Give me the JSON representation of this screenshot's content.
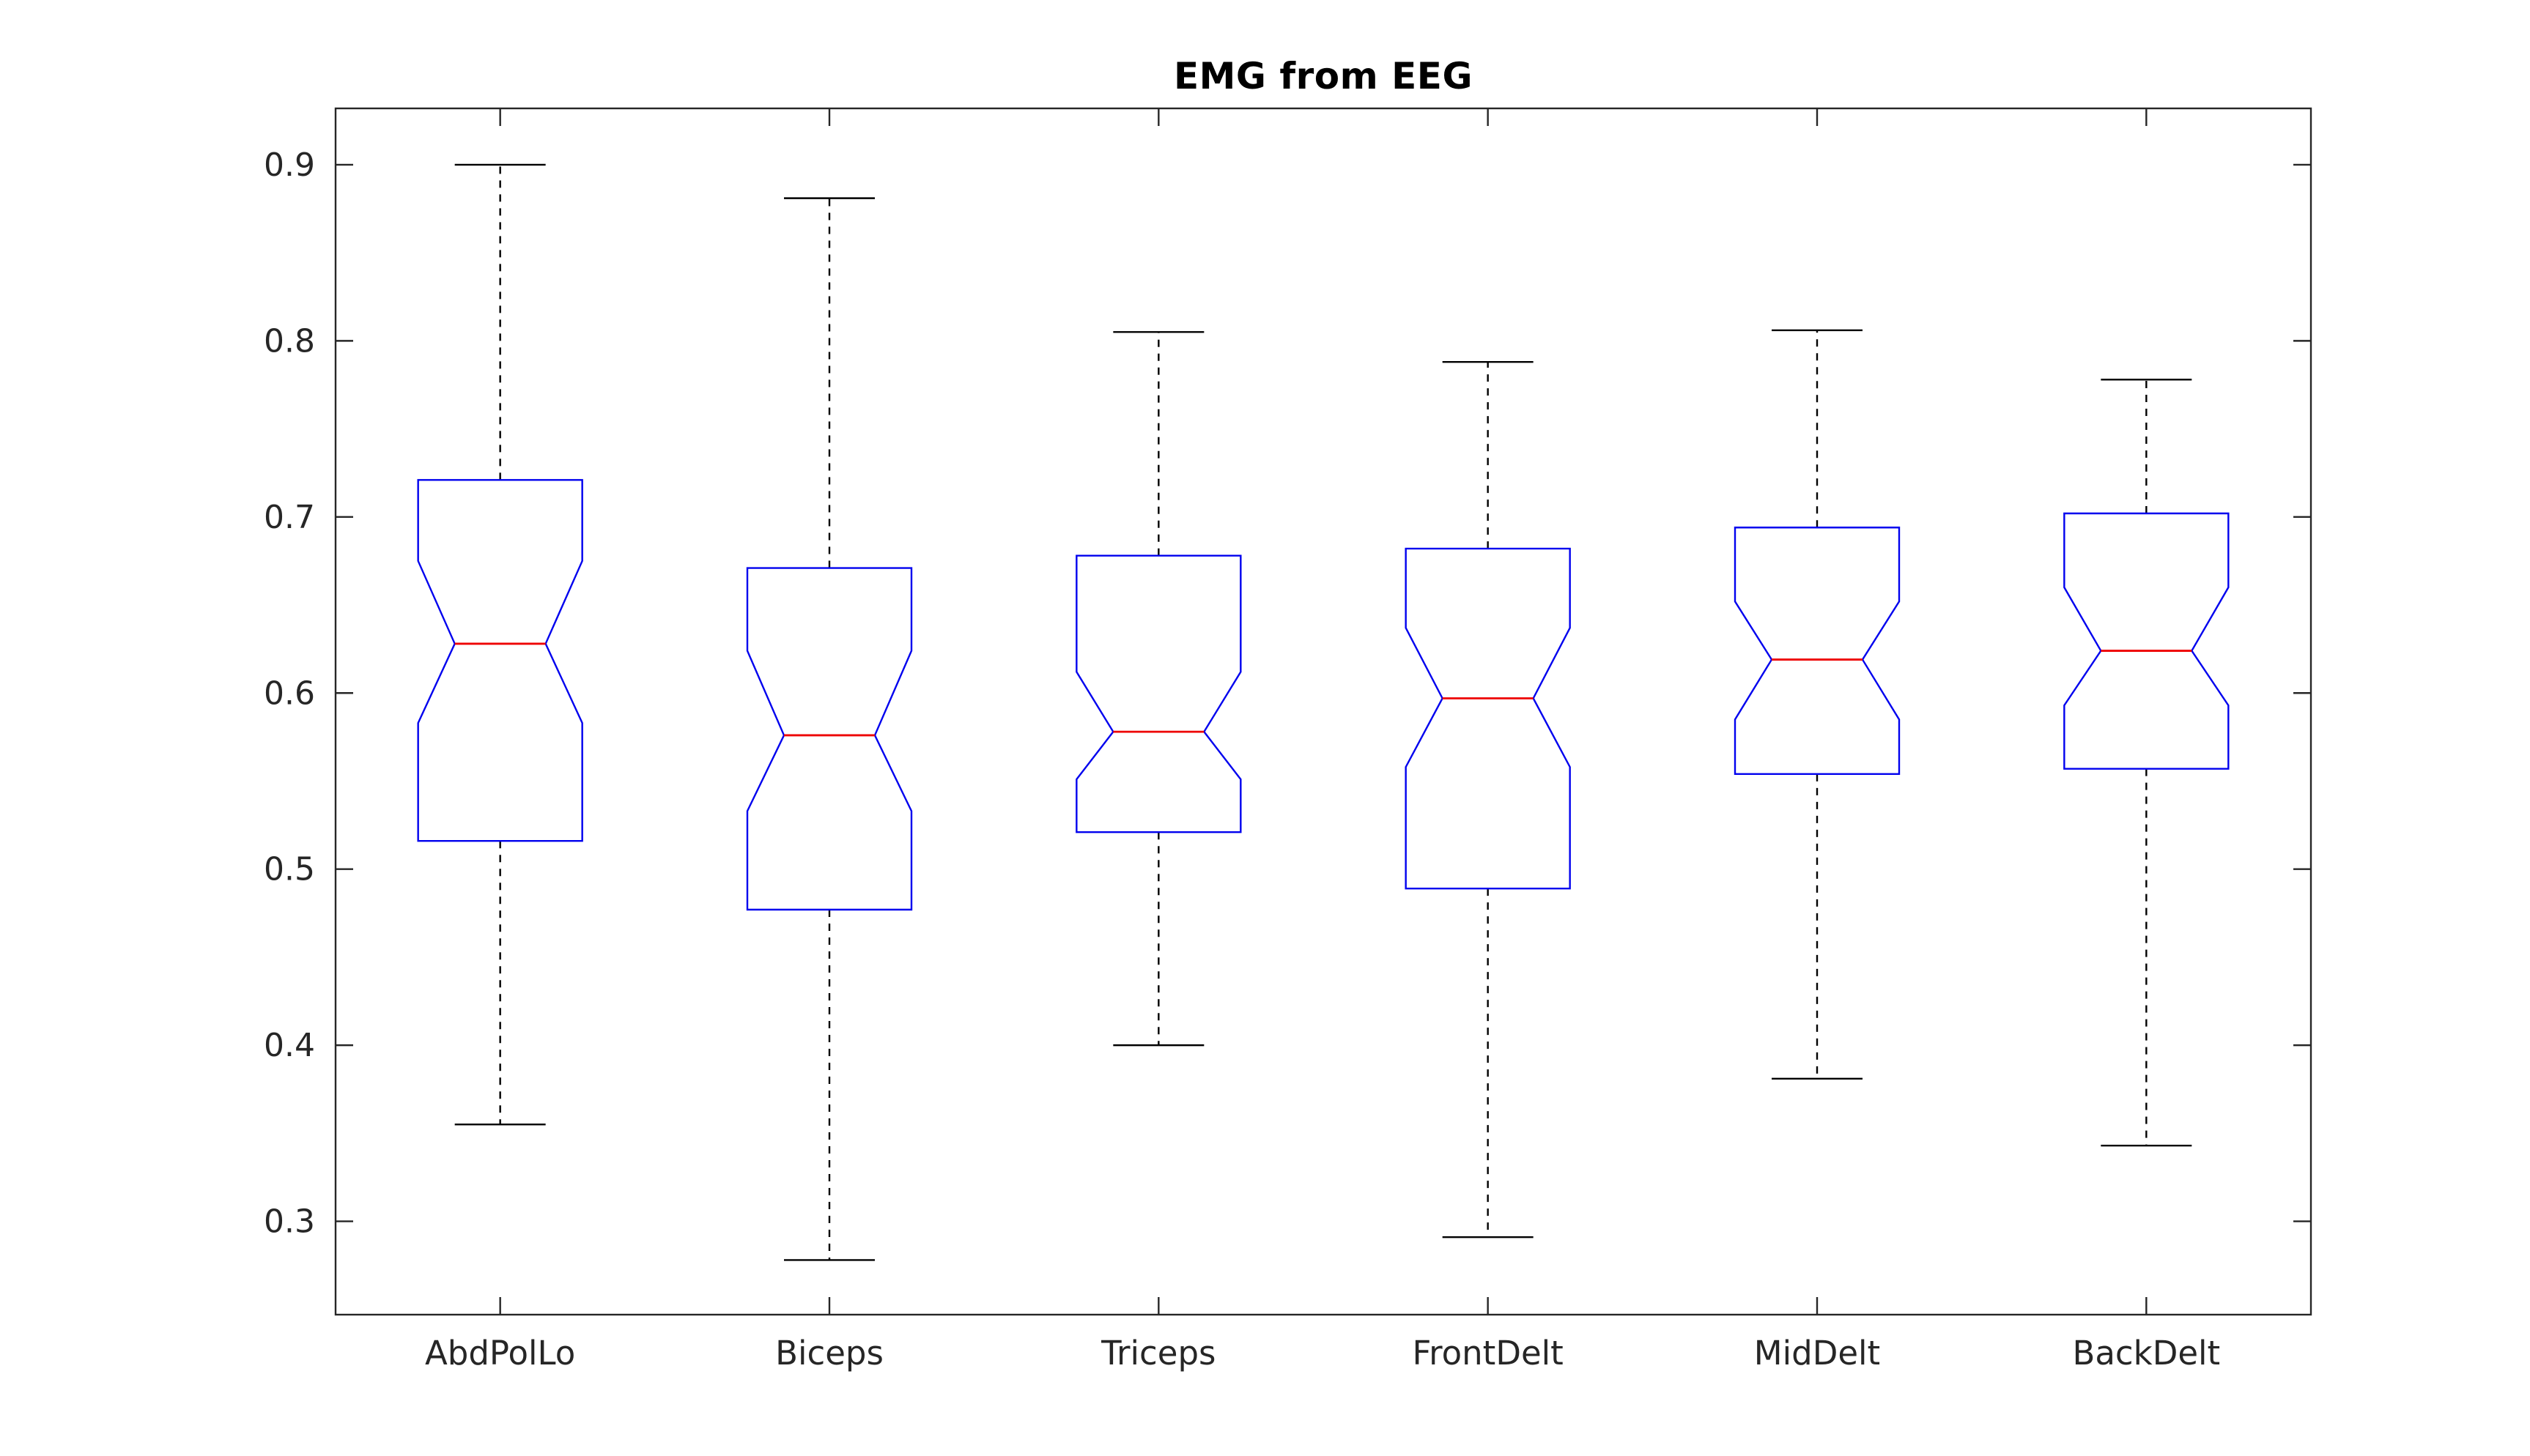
{
  "chart_data": {
    "type": "boxplot",
    "title": "EMG from EEG",
    "xlabel": "",
    "ylabel": "",
    "categories": [
      "AbdPolLo",
      "Biceps",
      "Triceps",
      "FrontDelt",
      "MidDelt",
      "BackDelt"
    ],
    "ylim": [
      0.247,
      0.932
    ],
    "yticks": [
      0.3,
      0.4,
      0.5,
      0.6,
      0.7,
      0.8,
      0.9
    ],
    "ytick_labels": [
      "0.3",
      "0.4",
      "0.5",
      "0.6",
      "0.7",
      "0.8",
      "0.9"
    ],
    "grid": false,
    "legend": null,
    "notched": true,
    "colors": {
      "box": "#0000ee",
      "median": "#ee0000",
      "whisker": "#000000",
      "cap": "#000000",
      "axis": "#262626",
      "tick_label": "#262626",
      "title": "#000000",
      "background": "#ffffff"
    },
    "boxes": [
      {
        "label": "AbdPolLo",
        "whisker_low": 0.355,
        "q1": 0.516,
        "median": 0.628,
        "q3": 0.721,
        "whisker_high": 0.9,
        "notch_low": 0.583,
        "notch_high": 0.675
      },
      {
        "label": "Biceps",
        "whisker_low": 0.278,
        "q1": 0.477,
        "median": 0.576,
        "q3": 0.671,
        "whisker_high": 0.881,
        "notch_low": 0.533,
        "notch_high": 0.624
      },
      {
        "label": "Triceps",
        "whisker_low": 0.4,
        "q1": 0.521,
        "median": 0.578,
        "q3": 0.678,
        "whisker_high": 0.805,
        "notch_low": 0.551,
        "notch_high": 0.612
      },
      {
        "label": "FrontDelt",
        "whisker_low": 0.291,
        "q1": 0.489,
        "median": 0.597,
        "q3": 0.682,
        "whisker_high": 0.788,
        "notch_low": 0.558,
        "notch_high": 0.637
      },
      {
        "label": "MidDelt",
        "whisker_low": 0.381,
        "q1": 0.554,
        "median": 0.619,
        "q3": 0.694,
        "whisker_high": 0.806,
        "notch_low": 0.585,
        "notch_high": 0.652
      },
      {
        "label": "BackDelt",
        "whisker_low": 0.343,
        "q1": 0.557,
        "median": 0.624,
        "q3": 0.702,
        "whisker_high": 0.778,
        "notch_low": 0.593,
        "notch_high": 0.66
      }
    ]
  }
}
